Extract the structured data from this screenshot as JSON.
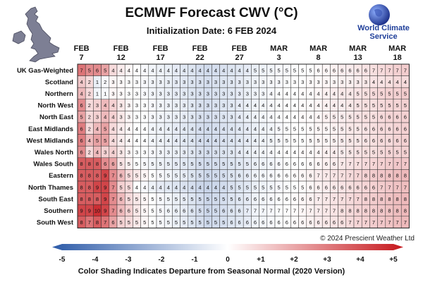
{
  "title": "ECMWF Forecast CWV (°C)",
  "subtitle": "Initialization Date: 6 FEB 2024",
  "brand": "World Climate Service",
  "copyright": "© 2024  Prescient Weather Ltd",
  "footnote": "Color Shading Indicates Departure from Seasonal Normal (2020 Version)",
  "colors": {
    "cold": "#2c5aa8",
    "neutral": "#ffffff",
    "warm": "#c6171c",
    "brand": "#1f3f9a"
  },
  "icons": {
    "map": "uk-map-icon",
    "logo": "globe-logo-icon"
  },
  "chart_data": {
    "type": "heatmap",
    "x_tick_labels": [
      {
        "month": "FEB",
        "day": "7",
        "index": 0
      },
      {
        "month": "FEB",
        "day": "12",
        "index": 5
      },
      {
        "month": "FEB",
        "day": "17",
        "index": 10
      },
      {
        "month": "FEB",
        "day": "22",
        "index": 15
      },
      {
        "month": "FEB",
        "day": "27",
        "index": 20
      },
      {
        "month": "MAR",
        "day": "3",
        "index": 25
      },
      {
        "month": "MAR",
        "day": "8",
        "index": 30
      },
      {
        "month": "MAR",
        "day": "13",
        "index": 35
      },
      {
        "month": "MAR",
        "day": "18",
        "index": 40
      }
    ],
    "colorbar": {
      "range": [
        -5,
        5
      ],
      "ticks": [
        "-5",
        "-4",
        "-3",
        "-2",
        "-1",
        "0",
        "+1",
        "+2",
        "+3",
        "+4",
        "+5"
      ]
    },
    "rows": [
      {
        "name": "UK Gas-Weighted",
        "values": [
          7,
          5,
          6,
          5,
          4,
          4,
          4,
          4,
          4,
          4,
          4,
          4,
          4,
          4,
          4,
          4,
          4,
          4,
          4,
          4,
          4,
          4,
          5,
          5,
          5,
          5,
          5,
          5,
          5,
          5,
          6,
          6,
          6,
          6,
          6,
          6,
          6,
          7,
          7,
          7,
          7,
          7
        ],
        "anomalies": [
          3.0,
          2.5,
          2.5,
          2.0,
          0.8,
          0.4,
          0.2,
          0.0,
          -0.2,
          -0.3,
          -0.4,
          -0.5,
          -0.6,
          -0.7,
          -0.8,
          -1.0,
          -1.1,
          -1.0,
          -0.9,
          -0.8,
          -0.7,
          -0.6,
          -0.5,
          -0.4,
          -0.3,
          -0.2,
          -0.2,
          -0.1,
          0.0,
          0.0,
          0.1,
          0.2,
          0.3,
          0.4,
          0.4,
          0.5,
          0.6,
          0.7,
          0.8,
          0.9,
          1.0,
          1.1
        ]
      },
      {
        "name": "Scotland",
        "values": [
          4,
          2,
          1,
          2,
          3,
          3,
          3,
          3,
          3,
          3,
          3,
          3,
          3,
          3,
          3,
          3,
          3,
          3,
          3,
          3,
          3,
          3,
          3,
          3,
          3,
          3,
          3,
          3,
          3,
          3,
          3,
          3,
          3,
          3,
          3,
          3,
          3,
          4,
          4,
          4,
          4,
          4
        ],
        "anomalies": [
          1.2,
          0.8,
          -0.5,
          -0.2,
          0.2,
          0.1,
          0.0,
          -0.1,
          -0.2,
          -0.3,
          -0.4,
          -0.5,
          -0.6,
          -0.7,
          -0.8,
          -0.9,
          -1.0,
          -0.9,
          -0.8,
          -0.7,
          -0.6,
          -0.5,
          -0.4,
          -0.3,
          -0.2,
          -0.2,
          -0.1,
          0.0,
          0.0,
          0.1,
          0.1,
          0.2,
          0.2,
          0.3,
          0.3,
          0.4,
          0.5,
          0.6,
          0.6,
          0.7,
          0.8,
          0.8
        ]
      },
      {
        "name": "Northern",
        "values": [
          4,
          2,
          1,
          1,
          3,
          3,
          3,
          3,
          3,
          3,
          3,
          3,
          3,
          3,
          3,
          3,
          3,
          3,
          3,
          3,
          3,
          3,
          3,
          3,
          4,
          4,
          4,
          4,
          4,
          4,
          4,
          4,
          4,
          4,
          4,
          5,
          5,
          5,
          5,
          5,
          5,
          5
        ],
        "anomalies": [
          1.5,
          0.8,
          -0.3,
          -0.2,
          0.2,
          0.1,
          0.0,
          -0.1,
          -0.2,
          -0.3,
          -0.4,
          -0.5,
          -0.6,
          -0.7,
          -0.8,
          -0.9,
          -1.0,
          -0.9,
          -0.8,
          -0.7,
          -0.6,
          -0.5,
          -0.4,
          -0.3,
          -0.2,
          -0.1,
          0.0,
          0.0,
          0.1,
          0.1,
          0.2,
          0.3,
          0.4,
          0.5,
          0.5,
          0.6,
          0.7,
          0.8,
          0.9,
          1.0,
          1.0,
          1.1
        ]
      },
      {
        "name": "North West",
        "values": [
          6,
          2,
          3,
          4,
          4,
          3,
          3,
          3,
          3,
          3,
          3,
          3,
          3,
          3,
          3,
          3,
          3,
          3,
          3,
          3,
          4,
          4,
          4,
          4,
          4,
          4,
          4,
          4,
          4,
          4,
          4,
          4,
          4,
          4,
          4,
          5,
          5,
          5,
          5,
          5,
          5,
          5
        ],
        "anomalies": [
          2.5,
          0.8,
          1.0,
          1.5,
          1.0,
          0.5,
          0.2,
          0.0,
          -0.1,
          -0.2,
          -0.3,
          -0.4,
          -0.5,
          -0.6,
          -0.7,
          -0.9,
          -1.0,
          -0.9,
          -0.8,
          -0.7,
          -0.6,
          -0.5,
          -0.4,
          -0.3,
          -0.2,
          -0.1,
          0.0,
          0.0,
          0.1,
          0.1,
          0.2,
          0.3,
          0.4,
          0.4,
          0.5,
          0.6,
          0.7,
          0.7,
          0.8,
          0.9,
          0.9,
          1.0
        ]
      },
      {
        "name": "North East",
        "values": [
          5,
          2,
          3,
          4,
          4,
          3,
          3,
          3,
          3,
          3,
          3,
          3,
          3,
          3,
          3,
          3,
          3,
          3,
          3,
          3,
          4,
          4,
          4,
          4,
          4,
          4,
          4,
          4,
          4,
          4,
          4,
          5,
          5,
          5,
          5,
          5,
          5,
          5,
          6,
          6,
          6,
          6
        ],
        "anomalies": [
          2.0,
          0.8,
          1.0,
          1.5,
          1.0,
          0.5,
          0.2,
          0.0,
          -0.1,
          -0.2,
          -0.3,
          -0.4,
          -0.5,
          -0.6,
          -0.7,
          -0.9,
          -1.0,
          -0.9,
          -0.8,
          -0.7,
          -0.6,
          -0.5,
          -0.4,
          -0.3,
          -0.2,
          -0.1,
          0.0,
          0.0,
          0.1,
          0.1,
          0.2,
          0.3,
          0.4,
          0.4,
          0.5,
          0.6,
          0.7,
          0.7,
          0.8,
          0.9,
          0.9,
          1.0
        ]
      },
      {
        "name": "East Midlands",
        "values": [
          6,
          2,
          4,
          5,
          4,
          4,
          4,
          4,
          4,
          4,
          4,
          4,
          4,
          4,
          4,
          4,
          4,
          4,
          4,
          4,
          4,
          4,
          4,
          4,
          4,
          5,
          5,
          5,
          5,
          5,
          5,
          5,
          5,
          5,
          5,
          5,
          6,
          6,
          6,
          6,
          6,
          6
        ],
        "anomalies": [
          2.8,
          0.8,
          1.5,
          2.0,
          0.8,
          0.4,
          0.2,
          0.0,
          -0.1,
          -0.3,
          -0.4,
          -0.5,
          -0.6,
          -0.7,
          -0.8,
          -1.0,
          -1.1,
          -1.0,
          -0.9,
          -0.8,
          -0.7,
          -0.6,
          -0.5,
          -0.4,
          -0.3,
          -0.2,
          -0.1,
          0.0,
          0.0,
          0.1,
          0.2,
          0.2,
          0.3,
          0.4,
          0.5,
          0.5,
          0.6,
          0.7,
          0.8,
          0.8,
          0.9,
          1.0
        ]
      },
      {
        "name": "West Midlands",
        "values": [
          6,
          4,
          5,
          5,
          4,
          4,
          4,
          4,
          4,
          4,
          4,
          4,
          4,
          4,
          4,
          4,
          4,
          4,
          4,
          4,
          4,
          4,
          4,
          4,
          5,
          5,
          5,
          5,
          5,
          5,
          5,
          5,
          5,
          5,
          5,
          5,
          6,
          6,
          6,
          6,
          6,
          6
        ],
        "anomalies": [
          2.8,
          1.5,
          2.0,
          2.0,
          0.8,
          0.4,
          0.2,
          0.0,
          -0.1,
          -0.3,
          -0.4,
          -0.5,
          -0.6,
          -0.7,
          -0.8,
          -1.0,
          -1.1,
          -1.0,
          -0.9,
          -0.8,
          -0.7,
          -0.6,
          -0.5,
          -0.4,
          -0.3,
          -0.2,
          -0.1,
          0.0,
          0.0,
          0.1,
          0.2,
          0.2,
          0.3,
          0.4,
          0.5,
          0.5,
          0.6,
          0.7,
          0.8,
          0.8,
          0.9,
          1.0
        ]
      },
      {
        "name": "Wales North",
        "values": [
          6,
          2,
          4,
          3,
          4,
          3,
          3,
          3,
          3,
          3,
          3,
          3,
          3,
          3,
          3,
          3,
          3,
          3,
          3,
          3,
          4,
          4,
          4,
          4,
          4,
          4,
          4,
          4,
          4,
          4,
          4,
          4,
          4,
          5,
          5,
          5,
          5,
          5,
          5,
          5,
          5,
          5
        ],
        "anomalies": [
          2.5,
          0.8,
          1.5,
          1.0,
          1.0,
          0.5,
          0.2,
          0.0,
          -0.1,
          -0.2,
          -0.3,
          -0.4,
          -0.5,
          -0.6,
          -0.7,
          -0.9,
          -1.0,
          -0.9,
          -0.8,
          -0.7,
          -0.6,
          -0.5,
          -0.4,
          -0.3,
          -0.2,
          -0.1,
          0.0,
          0.0,
          0.1,
          0.1,
          0.2,
          0.3,
          0.4,
          0.4,
          0.5,
          0.6,
          0.7,
          0.7,
          0.8,
          0.9,
          0.9,
          1.0
        ]
      },
      {
        "name": "Wales South",
        "values": [
          8,
          8,
          8,
          6,
          6,
          5,
          5,
          5,
          5,
          5,
          5,
          5,
          5,
          5,
          5,
          5,
          5,
          5,
          5,
          5,
          5,
          5,
          6,
          6,
          6,
          6,
          6,
          6,
          6,
          6,
          6,
          6,
          6,
          7,
          7,
          7,
          7,
          7,
          7,
          7,
          7,
          7
        ],
        "anomalies": [
          3.5,
          3.5,
          3.5,
          2.5,
          2.0,
          0.6,
          0.3,
          0.0,
          -0.2,
          -0.3,
          -0.4,
          -0.5,
          -0.6,
          -0.7,
          -0.8,
          -1.0,
          -1.1,
          -1.0,
          -0.9,
          -0.8,
          -0.7,
          -0.6,
          -0.5,
          -0.4,
          -0.3,
          -0.2,
          -0.1,
          0.0,
          0.0,
          0.1,
          0.2,
          0.3,
          0.4,
          0.5,
          0.6,
          0.7,
          0.8,
          0.9,
          1.0,
          1.1,
          1.2,
          1.2
        ]
      },
      {
        "name": "Eastern",
        "values": [
          8,
          8,
          8,
          9,
          7,
          6,
          5,
          5,
          5,
          5,
          5,
          5,
          5,
          5,
          5,
          5,
          5,
          5,
          5,
          5,
          6,
          6,
          6,
          6,
          6,
          6,
          6,
          6,
          6,
          6,
          7,
          7,
          7,
          7,
          7,
          7,
          8,
          8,
          8,
          8,
          8,
          8
        ],
        "anomalies": [
          3.5,
          3.5,
          3.5,
          4.0,
          2.5,
          1.5,
          0.8,
          0.5,
          0.2,
          0.0,
          -0.2,
          -0.3,
          -0.5,
          -0.6,
          -0.8,
          -1.0,
          -1.2,
          -1.1,
          -1.0,
          -0.8,
          -0.7,
          -0.6,
          -0.4,
          -0.3,
          -0.2,
          -0.1,
          0.0,
          0.1,
          0.2,
          0.3,
          0.4,
          0.5,
          0.6,
          0.7,
          0.8,
          0.9,
          1.0,
          1.1,
          1.2,
          1.3,
          1.4,
          1.5
        ]
      },
      {
        "name": "North Thames",
        "values": [
          8,
          8,
          9,
          9,
          7,
          5,
          5,
          4,
          4,
          4,
          4,
          4,
          4,
          4,
          4,
          4,
          4,
          4,
          4,
          5,
          5,
          5,
          5,
          5,
          5,
          5,
          5,
          5,
          5,
          6,
          6,
          6,
          6,
          6,
          6,
          6,
          6,
          6,
          7,
          7,
          7,
          7
        ],
        "anomalies": [
          3.5,
          3.5,
          4.0,
          4.0,
          2.5,
          1.0,
          0.8,
          0.0,
          -0.2,
          -0.4,
          -0.6,
          -0.7,
          -0.8,
          -0.9,
          -1.0,
          -1.2,
          -1.3,
          -1.2,
          -1.1,
          -0.9,
          -0.8,
          -0.7,
          -0.5,
          -0.4,
          -0.3,
          -0.2,
          -0.1,
          0.0,
          0.1,
          0.2,
          0.3,
          0.4,
          0.5,
          0.6,
          0.7,
          0.8,
          0.9,
          1.0,
          1.1,
          1.2,
          1.3,
          1.4
        ]
      },
      {
        "name": "South East",
        "values": [
          8,
          8,
          8,
          9,
          7,
          6,
          5,
          5,
          5,
          5,
          5,
          5,
          5,
          5,
          5,
          5,
          5,
          5,
          5,
          5,
          6,
          6,
          6,
          6,
          6,
          6,
          6,
          6,
          6,
          6,
          7,
          7,
          7,
          7,
          7,
          7,
          8,
          8,
          8,
          8,
          8,
          8
        ],
        "anomalies": [
          3.5,
          3.5,
          3.5,
          4.0,
          2.5,
          1.5,
          0.8,
          0.5,
          0.2,
          0.0,
          -0.2,
          -0.3,
          -0.5,
          -0.6,
          -0.8,
          -1.0,
          -1.2,
          -1.1,
          -1.0,
          -0.8,
          -0.7,
          -0.6,
          -0.4,
          -0.3,
          -0.2,
          -0.1,
          0.0,
          0.1,
          0.2,
          0.3,
          0.4,
          0.5,
          0.6,
          0.7,
          0.8,
          0.9,
          1.0,
          1.1,
          1.2,
          1.3,
          1.4,
          1.5
        ]
      },
      {
        "name": "Southern",
        "values": [
          9,
          9,
          10,
          9,
          7,
          6,
          6,
          5,
          5,
          5,
          5,
          6,
          6,
          6,
          6,
          5,
          5,
          5,
          6,
          6,
          6,
          7,
          7,
          7,
          7,
          7,
          7,
          7,
          7,
          7,
          7,
          7,
          7,
          8,
          8,
          8,
          8,
          8,
          8,
          8,
          8,
          8
        ],
        "anomalies": [
          4.0,
          4.0,
          4.5,
          4.0,
          2.5,
          1.5,
          1.0,
          0.5,
          0.2,
          0.0,
          -0.2,
          -0.3,
          -0.5,
          -0.6,
          -0.8,
          -1.0,
          -1.2,
          -1.1,
          -1.0,
          -0.8,
          -0.7,
          -0.6,
          -0.4,
          -0.3,
          -0.2,
          -0.1,
          0.0,
          0.1,
          0.2,
          0.3,
          0.4,
          0.5,
          0.6,
          0.7,
          0.8,
          0.9,
          1.0,
          1.1,
          1.2,
          1.3,
          1.4,
          1.5
        ]
      },
      {
        "name": "South West",
        "values": [
          8,
          7,
          8,
          7,
          6,
          5,
          5,
          5,
          5,
          5,
          5,
          5,
          5,
          5,
          5,
          5,
          5,
          5,
          5,
          6,
          6,
          6,
          6,
          6,
          6,
          6,
          6,
          6,
          6,
          6,
          6,
          6,
          6,
          6,
          7,
          7,
          7,
          7,
          7,
          7,
          7,
          7
        ],
        "anomalies": [
          3.5,
          3.0,
          3.5,
          3.0,
          2.0,
          1.0,
          0.8,
          0.5,
          0.2,
          0.0,
          -0.2,
          -0.3,
          -0.5,
          -0.6,
          -0.8,
          -1.0,
          -1.2,
          -1.1,
          -1.0,
          -0.8,
          -0.7,
          -0.6,
          -0.4,
          -0.3,
          -0.2,
          -0.1,
          0.0,
          0.1,
          0.2,
          0.3,
          0.4,
          0.5,
          0.6,
          0.7,
          0.8,
          0.9,
          1.0,
          1.1,
          1.2,
          1.3,
          1.4,
          1.5
        ]
      }
    ]
  }
}
